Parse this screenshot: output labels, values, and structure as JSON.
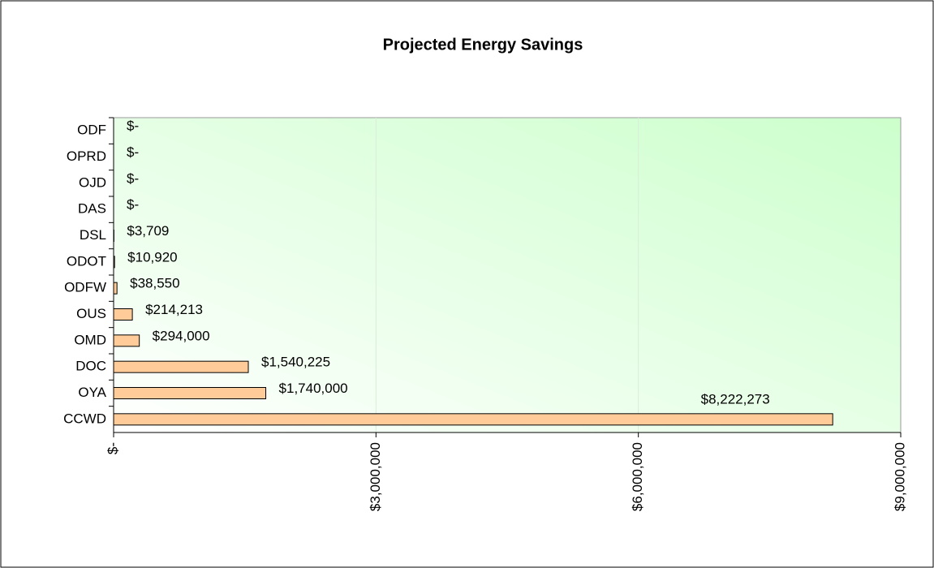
{
  "chart_data": {
    "type": "barh",
    "title": "Projected Energy Savings",
    "categories": [
      "ODF",
      "OPRD",
      "OJD",
      "DAS",
      "DSL",
      "ODOT",
      "ODFW",
      "OUS",
      "OMD",
      "DOC",
      "OYA",
      "CCWD"
    ],
    "values": [
      0,
      0,
      0,
      0,
      3709,
      10920,
      38550,
      214213,
      294000,
      1540225,
      1740000,
      8222273
    ],
    "value_labels": [
      "$-",
      "$-",
      "$-",
      "$-",
      "$3,709",
      "$10,920",
      "$38,550",
      "$214,213",
      "$294,000",
      "$1,540,225",
      "$1,740,000",
      "$8,222,273"
    ],
    "color": "#ffcc99",
    "xlim": [
      0,
      9000000
    ],
    "xticks": [
      {
        "value": 0,
        "label": "$-"
      },
      {
        "value": 3000000,
        "label": "$3,000,000"
      },
      {
        "value": 6000000,
        "label": "$6,000,000"
      },
      {
        "value": 9000000,
        "label": "$9,000,000"
      }
    ],
    "grid": true
  }
}
